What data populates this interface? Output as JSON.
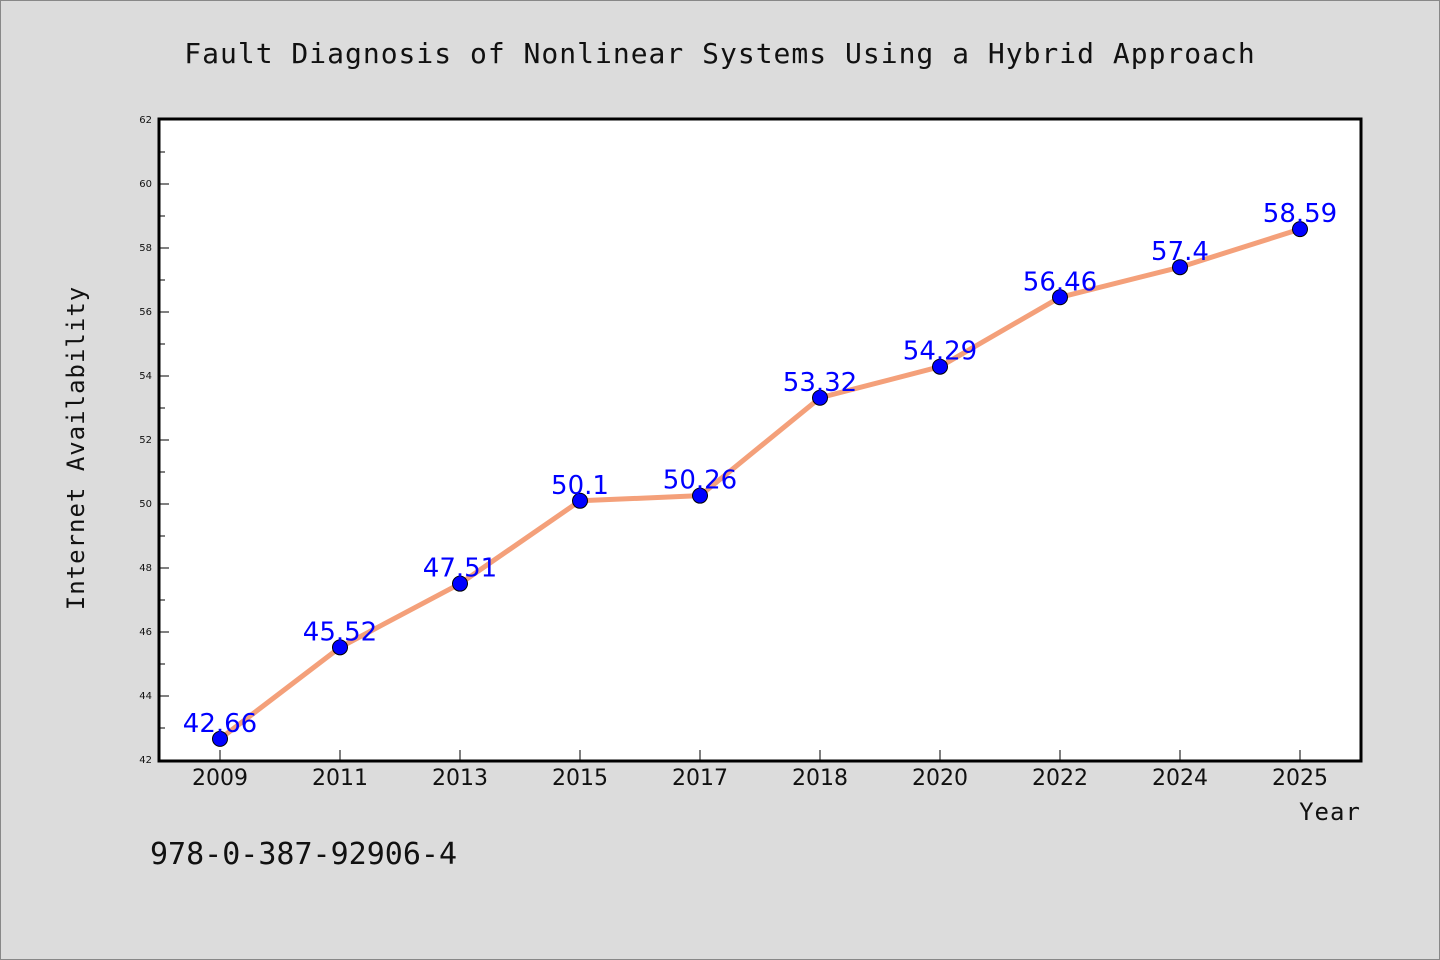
{
  "colors": {
    "background": "#dcdcdc",
    "plot_background": "#ffffff",
    "line": "#f4a07a",
    "marker": "#0000ff",
    "data_label": "#0000ff"
  },
  "isbn": "978-0-387-92906-4",
  "chart_data": {
    "type": "line",
    "title": "Fault Diagnosis of Nonlinear Systems Using a Hybrid Approach",
    "xlabel": "Year",
    "ylabel": "Internet Availability",
    "categories": [
      "2009",
      "2011",
      "2013",
      "2015",
      "2017",
      "2018",
      "2020",
      "2022",
      "2024",
      "2025"
    ],
    "values": [
      42.66,
      45.52,
      47.51,
      50.1,
      50.26,
      53.32,
      54.29,
      56.46,
      57.4,
      58.59
    ],
    "data_labels": [
      "42.66",
      "45.52",
      "47.51",
      "50.1",
      "50.26",
      "53.32",
      "54.29",
      "56.46",
      "57.4",
      "58.59"
    ],
    "ylim": [
      42,
      62
    ],
    "yticks": [
      "42",
      "44",
      "46",
      "48",
      "50",
      "52",
      "54",
      "56",
      "58",
      "60",
      "62"
    ],
    "grid": false,
    "legend": "none"
  }
}
